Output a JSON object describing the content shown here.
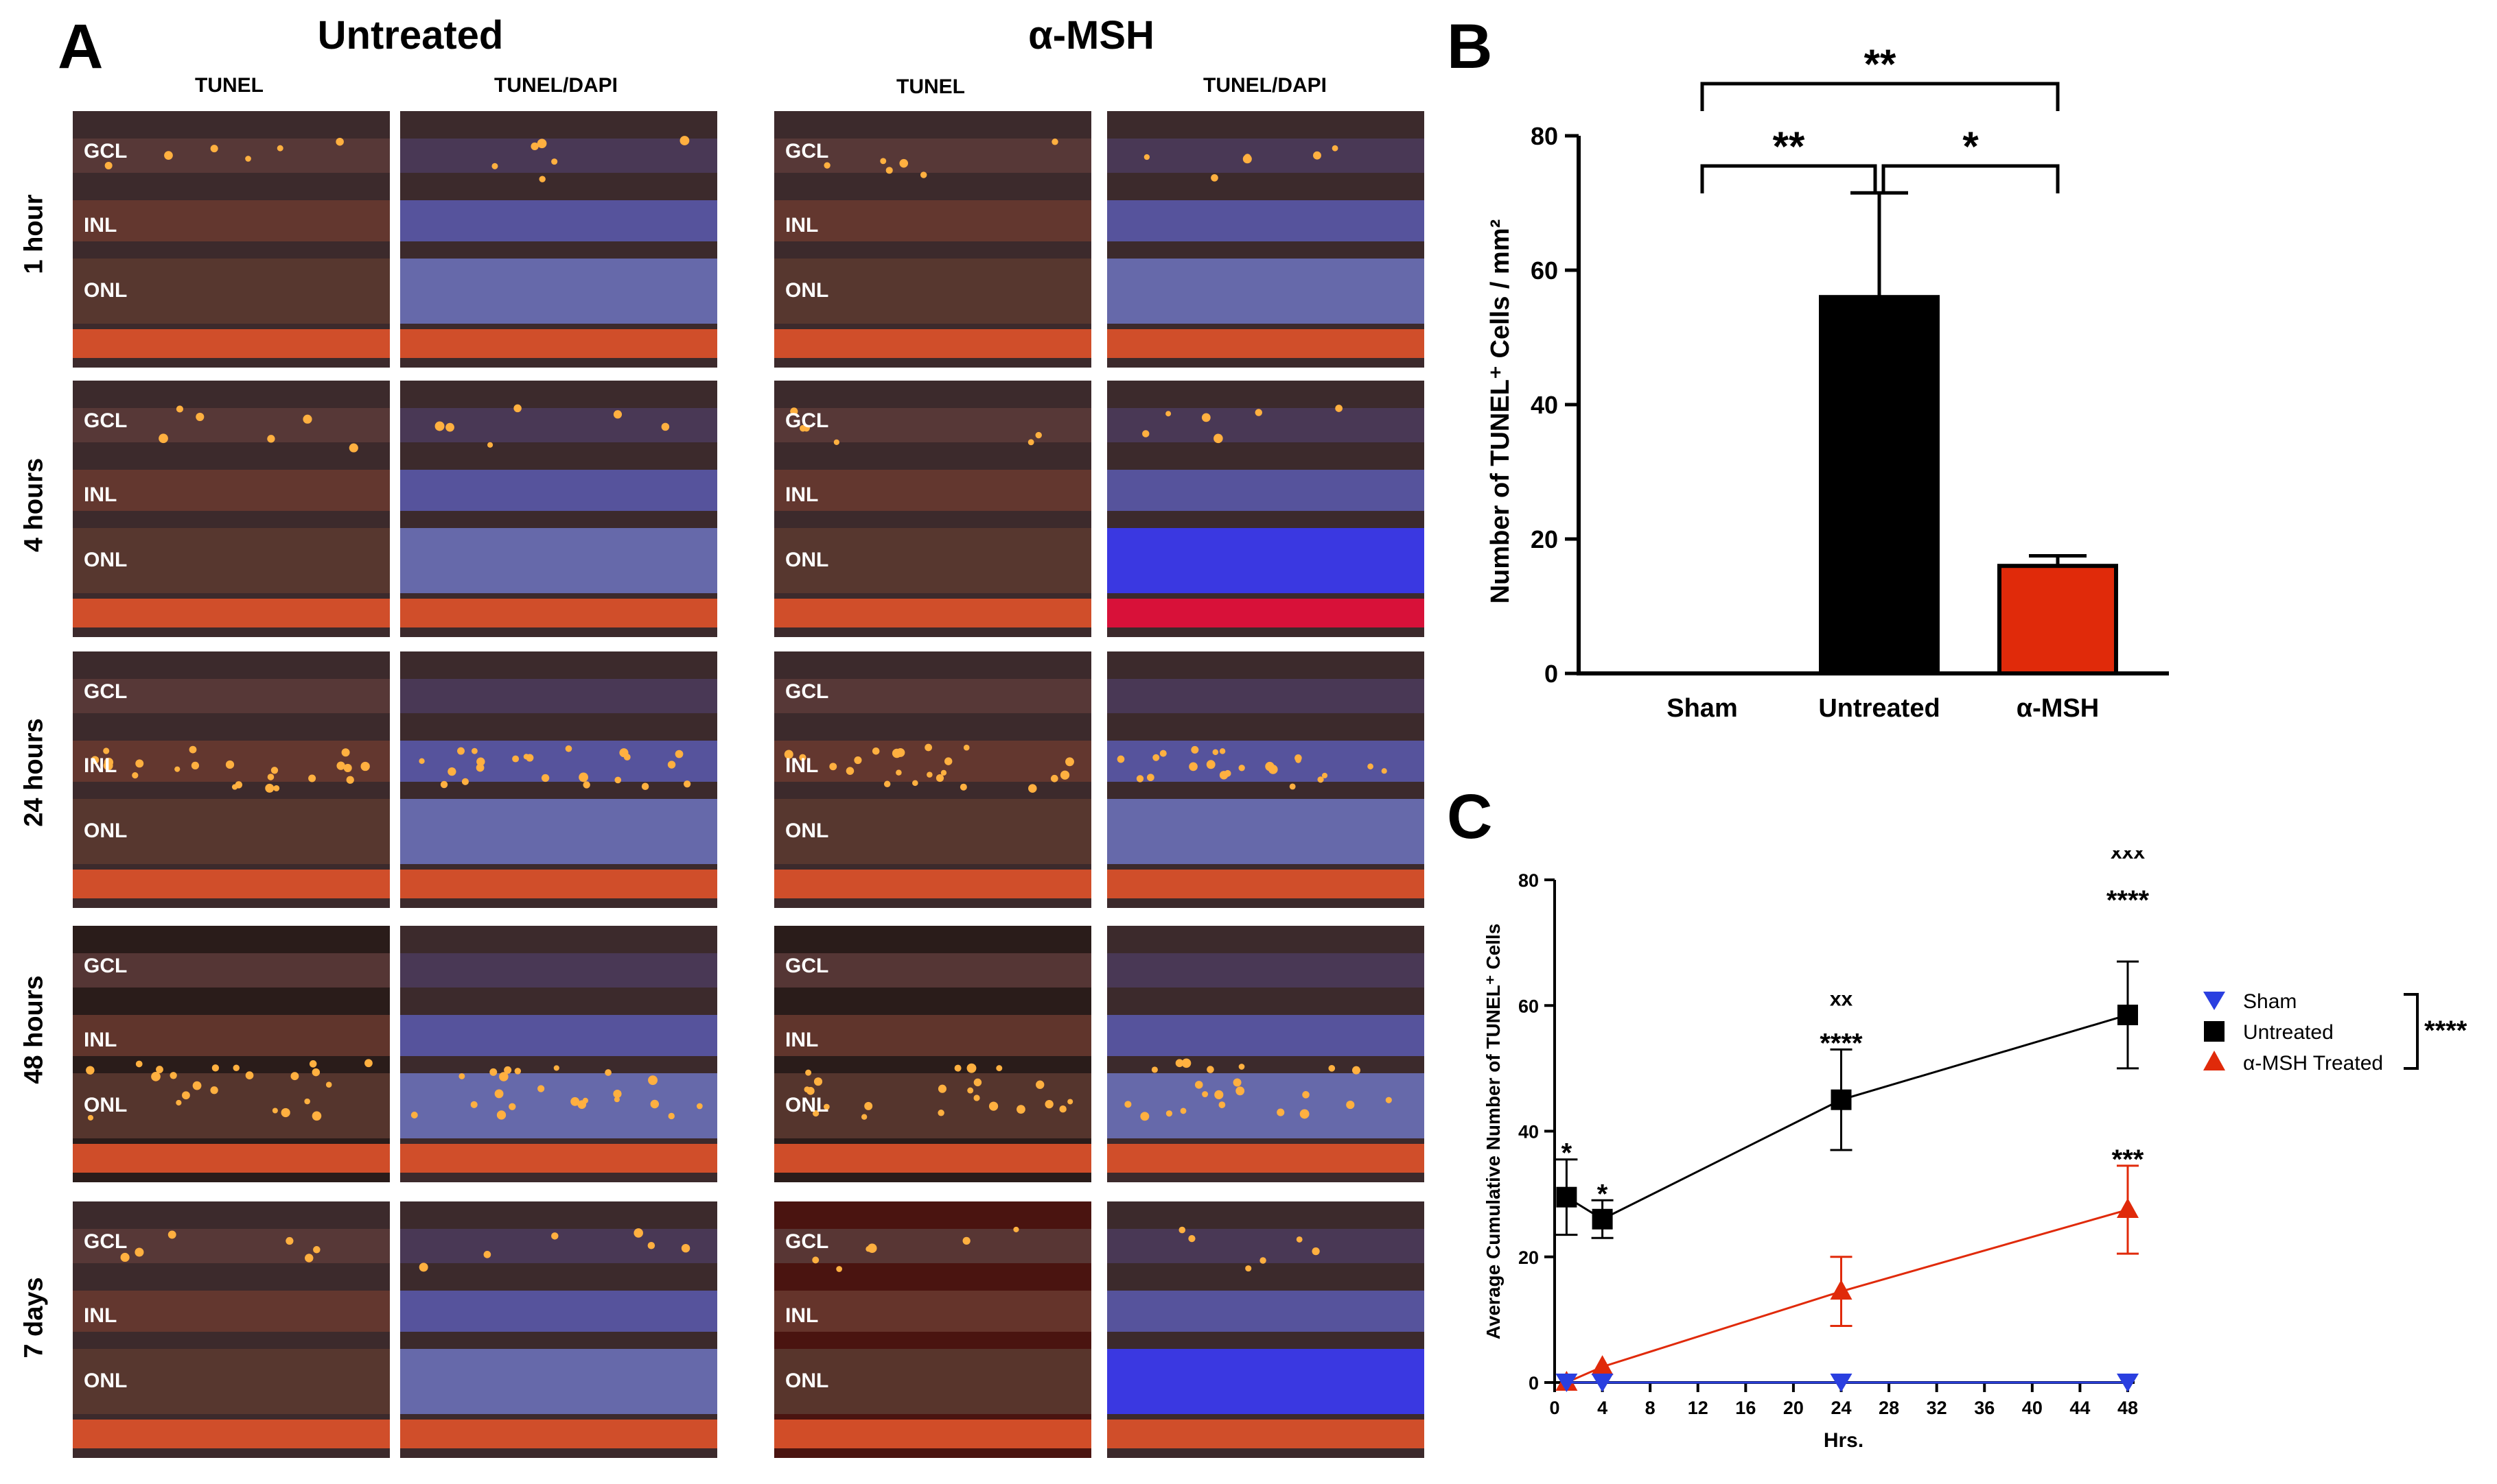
{
  "panel_a": {
    "letter": "A",
    "groups": [
      {
        "title": "Untreated",
        "columns": [
          "TUNEL",
          "TUNEL/DAPI"
        ]
      },
      {
        "title": "α-MSH",
        "columns": [
          "TUNEL",
          "TUNEL/DAPI"
        ]
      }
    ],
    "rows": [
      "1 hour",
      "4 hours",
      "24 hours",
      "48 hours",
      "7 days"
    ],
    "layer_labels": [
      "GCL",
      "INL",
      "ONL"
    ]
  },
  "panel_b": {
    "letter": "B",
    "chart_data": {
      "type": "bar",
      "ylabel": "Number of TUNEL⁺ Cells / mm²",
      "ylim": [
        0,
        80
      ],
      "yticks": [
        0,
        20,
        40,
        60,
        80
      ],
      "categories": [
        "Sham",
        "Untreated",
        "α-MSH"
      ],
      "values": [
        0,
        56,
        16
      ],
      "errors": [
        0,
        15.5,
        1.5
      ],
      "colors": [
        "#000000",
        "#000000",
        "#e02a0a"
      ],
      "significance": [
        {
          "from": "Sham",
          "to": "α-MSH",
          "label": "**"
        },
        {
          "from": "Sham",
          "to": "Untreated",
          "label": "**"
        },
        {
          "from": "Untreated",
          "to": "α-MSH",
          "label": "*"
        }
      ]
    }
  },
  "panel_c": {
    "letter": "C",
    "chart_data": {
      "type": "line",
      "xlabel": "Hrs.",
      "ylabel": "Average Cumulative Number of TUNEL⁺ Cells",
      "xlim": [
        0,
        48
      ],
      "ylim": [
        0,
        80
      ],
      "xticks": [
        0,
        4,
        8,
        12,
        16,
        20,
        24,
        28,
        32,
        36,
        40,
        44,
        48
      ],
      "yticks": [
        0,
        20,
        40,
        60,
        80
      ],
      "x": [
        1,
        4,
        24,
        48
      ],
      "series": [
        {
          "name": "Sham",
          "values": [
            0,
            0,
            0,
            0
          ],
          "errors": [
            0,
            0,
            0,
            0
          ],
          "color": "#2a3fe0",
          "marker": "triangle-down"
        },
        {
          "name": "Untreated",
          "values": [
            29.5,
            26,
            45,
            58.5
          ],
          "errors": [
            6,
            3,
            8,
            8.5
          ],
          "color": "#000000",
          "marker": "square"
        },
        {
          "name": "α-MSH Treated",
          "values": [
            0,
            2.5,
            14.5,
            27.5
          ],
          "errors": [
            0,
            0,
            5.5,
            7
          ],
          "color": "#e02a0a",
          "marker": "triangle-up"
        }
      ],
      "annotations": [
        {
          "x": 1,
          "text": "*"
        },
        {
          "x": 4,
          "text": "*"
        },
        {
          "x": 24,
          "text": "xx"
        },
        {
          "x": 24,
          "text": "****"
        },
        {
          "x": 48,
          "text": "xxx"
        },
        {
          "x": 48,
          "text": "****"
        },
        {
          "x": 48,
          "text": "***"
        }
      ],
      "legend_bracket_label": "****"
    }
  },
  "colors": {
    "tissue_red": "#c8481f",
    "dapi_blue": "#3a3fd8",
    "bar_red": "#e02a0a",
    "sham_blue": "#2a3fe0"
  }
}
